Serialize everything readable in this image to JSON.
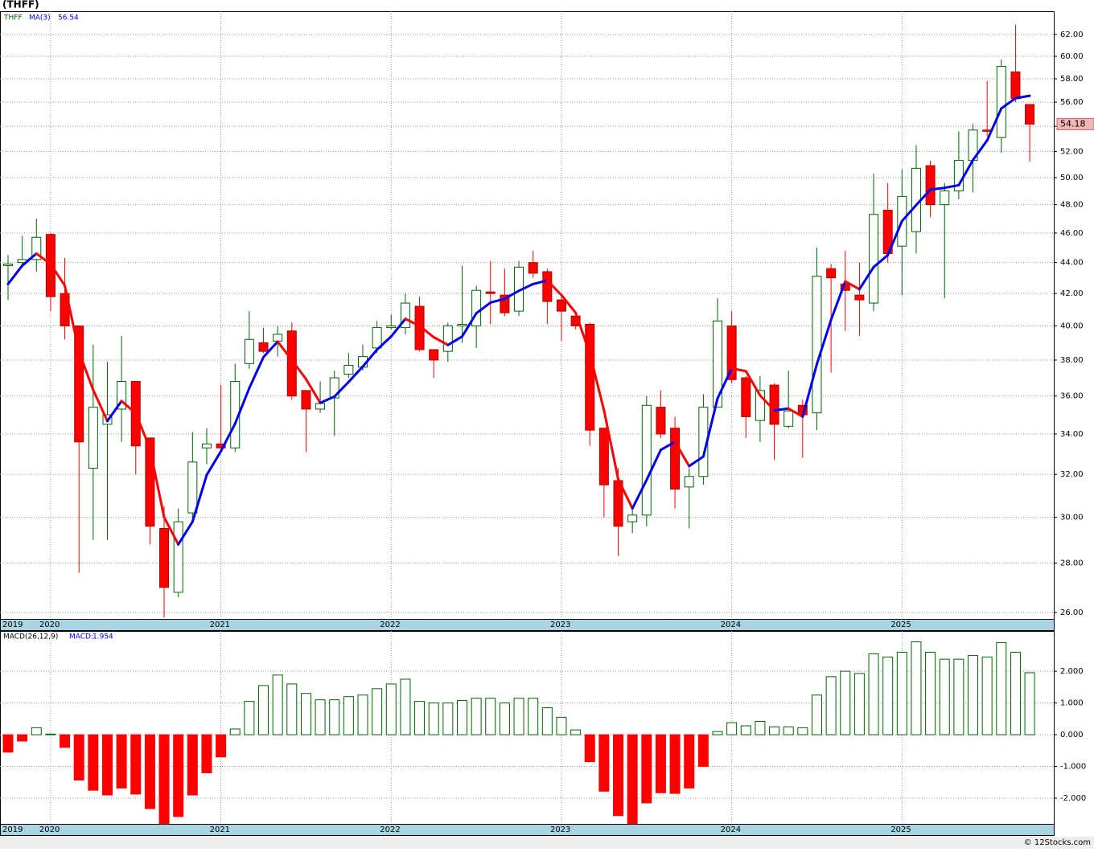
{
  "chart_data": [
    {
      "type": "candlestick",
      "title": "(THFF)",
      "symbol": "THFF",
      "categories": [
        "2019",
        null,
        null,
        "2020",
        null,
        null,
        null,
        null,
        null,
        null,
        null,
        null,
        null,
        null,
        null,
        "2021",
        null,
        null,
        null,
        null,
        null,
        null,
        null,
        null,
        null,
        null,
        null,
        "2022",
        null,
        null,
        null,
        null,
        null,
        null,
        null,
        null,
        null,
        null,
        null,
        "2023",
        null,
        null,
        null,
        null,
        null,
        null,
        null,
        null,
        null,
        null,
        null,
        "2024",
        null,
        null,
        null,
        null,
        null,
        null,
        null,
        null,
        null,
        null,
        null,
        "2025",
        null,
        null,
        null,
        null,
        null,
        null,
        null,
        null,
        null
      ],
      "open": [
        43.8,
        44.0,
        44.2,
        45.9,
        42.0,
        40.0,
        32.3,
        34.5,
        35.3,
        36.8,
        33.8,
        29.5,
        26.8,
        30.2,
        33.3,
        33.5,
        33.3,
        37.8,
        39.0,
        39.1,
        39.7,
        36.3,
        35.3,
        35.9,
        37.2,
        37.6,
        38.7,
        39.9,
        39.9,
        41.2,
        38.6,
        38.5,
        40.0,
        40.0,
        42.1,
        41.9,
        40.9,
        44.0,
        43.4,
        41.6,
        40.6,
        40.1,
        34.3,
        31.7,
        29.8,
        30.1,
        35.4,
        34.3,
        31.4,
        31.9,
        35.4,
        40.0,
        37.0,
        34.7,
        36.6,
        34.4,
        35.5,
        35.1,
        43.6,
        42.6,
        41.9,
        41.4,
        47.6,
        45.1,
        46.1,
        50.9,
        48.0,
        49.0,
        51.3,
        53.7,
        53.1,
        58.6,
        55.8
      ],
      "high": [
        44.5,
        45.8,
        47.0,
        46.0,
        44.3,
        40.0,
        38.9,
        37.9,
        39.4,
        36.8,
        33.8,
        30.5,
        30.4,
        34.1,
        34.3,
        36.6,
        37.8,
        40.9,
        39.9,
        40.0,
        40.2,
        36.3,
        36.8,
        37.4,
        38.4,
        38.9,
        40.3,
        40.7,
        42.0,
        41.8,
        38.6,
        40.2,
        43.8,
        42.5,
        44.1,
        43.6,
        44.1,
        44.8,
        43.6,
        42.0,
        40.7,
        40.2,
        34.3,
        32.3,
        30.4,
        36.0,
        36.3,
        34.9,
        32.3,
        36.1,
        41.7,
        40.9,
        37.1,
        37.1,
        36.7,
        37.4,
        35.8,
        45.0,
        43.9,
        44.8,
        44.0,
        50.3,
        49.6,
        50.6,
        52.5,
        51.3,
        49.6,
        53.6,
        54.2,
        57.8,
        59.7,
        62.9,
        55.8
      ],
      "low": [
        41.6,
        43.7,
        43.4,
        40.9,
        39.2,
        27.6,
        29.0,
        29.0,
        33.6,
        32.0,
        28.8,
        25.8,
        26.6,
        29.8,
        32.5,
        33.2,
        33.1,
        37.5,
        38.4,
        38.2,
        35.8,
        33.1,
        35.1,
        33.9,
        37.0,
        37.4,
        38.4,
        39.8,
        39.5,
        38.5,
        37.0,
        37.9,
        39.0,
        38.7,
        40.1,
        40.6,
        40.6,
        43.0,
        40.1,
        39.1,
        39.8,
        33.4,
        30.0,
        28.3,
        29.3,
        29.6,
        33.8,
        30.4,
        29.5,
        31.5,
        35.4,
        36.7,
        33.8,
        33.6,
        32.7,
        34.3,
        32.8,
        34.2,
        37.3,
        39.7,
        39.4,
        40.9,
        44.0,
        41.9,
        44.6,
        47.1,
        41.7,
        48.4,
        48.9,
        53.2,
        51.9,
        56.0,
        51.2
      ],
      "close": [
        43.9,
        44.2,
        45.7,
        41.8,
        40.0,
        33.6,
        35.4,
        35.0,
        36.8,
        33.4,
        29.6,
        27.0,
        29.8,
        32.6,
        33.5,
        33.3,
        36.8,
        39.2,
        38.5,
        39.5,
        36.0,
        35.3,
        35.6,
        37.0,
        37.7,
        38.2,
        39.9,
        40.0,
        41.4,
        38.6,
        38.0,
        40.0,
        40.1,
        42.2,
        42.0,
        40.8,
        43.7,
        43.3,
        41.5,
        40.9,
        40.0,
        34.2,
        31.5,
        29.6,
        30.1,
        35.5,
        34.0,
        31.3,
        31.9,
        35.4,
        40.3,
        36.9,
        34.9,
        36.3,
        34.5,
        35.2,
        35.0,
        43.1,
        43.0,
        42.2,
        41.6,
        47.3,
        44.6,
        48.6,
        50.7,
        48.0,
        49.0,
        51.3,
        53.7,
        53.6,
        59.1,
        56.3,
        54.18
      ],
      "up_color": "#006400",
      "down_color": "#ff0000",
      "ma": {
        "name": "MA(3)",
        "values": [
          42.6,
          43.8,
          44.6,
          43.9,
          42.5,
          38.47,
          36.33,
          34.67,
          35.73,
          35.07,
          33.27,
          30.0,
          28.8,
          29.8,
          31.97,
          33.13,
          34.53,
          36.43,
          38.17,
          39.07,
          38.0,
          36.93,
          35.63,
          35.97,
          36.77,
          37.63,
          38.6,
          39.37,
          40.43,
          40.0,
          39.33,
          38.87,
          39.37,
          40.77,
          41.43,
          41.67,
          42.17,
          42.6,
          42.83,
          41.9,
          40.8,
          38.37,
          35.23,
          31.77,
          30.4,
          31.73,
          33.2,
          33.6,
          32.4,
          32.87,
          35.87,
          37.53,
          37.37,
          36.03,
          35.23,
          35.33,
          34.9,
          37.77,
          40.37,
          42.77,
          42.27,
          43.7,
          44.5,
          46.83,
          47.97,
          49.1,
          49.23,
          49.43,
          51.33,
          52.87,
          55.47,
          56.33,
          56.54
        ],
        "rise_color": "#0000ee",
        "fall_color": "#ff0000"
      },
      "log_scale": true,
      "grid": true,
      "ylim": [
        25.75,
        64.2
      ],
      "yticks": [
        {
          "value": 26,
          "label": "26.00"
        },
        {
          "value": 28,
          "label": "28.00"
        },
        {
          "value": 30,
          "label": "30.00"
        },
        {
          "value": 32,
          "label": "32.00"
        },
        {
          "value": 34,
          "label": "34.00"
        },
        {
          "value": 36,
          "label": "36.00"
        },
        {
          "value": 38,
          "label": "38.00"
        },
        {
          "value": 40,
          "label": "40.00"
        },
        {
          "value": 42,
          "label": "42.00"
        },
        {
          "value": 44,
          "label": "44.00"
        },
        {
          "value": 46,
          "label": "46.00"
        },
        {
          "value": 48,
          "label": "48.00"
        },
        {
          "value": 50,
          "label": "50.00"
        },
        {
          "value": 52,
          "label": "52.00"
        },
        {
          "value": 54,
          "label": "54.00"
        },
        {
          "value": 56,
          "label": "56.00"
        },
        {
          "value": 58,
          "label": "58.00"
        },
        {
          "value": 60,
          "label": "60.00"
        },
        {
          "value": 62,
          "label": "62.00"
        }
      ]
    },
    {
      "type": "bar",
      "name": "MACD(26,12,9)",
      "value_prefix": "MACD:",
      "categories": [
        "2019",
        null,
        null,
        "2020",
        null,
        null,
        null,
        null,
        null,
        null,
        null,
        null,
        null,
        null,
        null,
        "2021",
        null,
        null,
        null,
        null,
        null,
        null,
        null,
        null,
        null,
        null,
        null,
        "2022",
        null,
        null,
        null,
        null,
        null,
        null,
        null,
        null,
        null,
        null,
        null,
        "2023",
        null,
        null,
        null,
        null,
        null,
        null,
        null,
        null,
        null,
        null,
        null,
        "2024",
        null,
        null,
        null,
        null,
        null,
        null,
        null,
        null,
        null,
        null,
        null,
        "2025",
        null,
        null,
        null,
        null,
        null,
        null,
        null,
        null,
        null
      ],
      "values": [
        -0.55,
        -0.2,
        0.22,
        0.02,
        -0.4,
        -1.43,
        -1.75,
        -1.9,
        -1.68,
        -1.87,
        -2.33,
        -2.8,
        -2.58,
        -1.9,
        -1.2,
        -0.7,
        0.18,
        1.05,
        1.55,
        1.88,
        1.6,
        1.3,
        1.1,
        1.1,
        1.2,
        1.25,
        1.45,
        1.6,
        1.75,
        1.05,
        1.0,
        1.0,
        1.08,
        1.15,
        1.15,
        1.0,
        1.15,
        1.15,
        0.85,
        0.55,
        0.15,
        -0.85,
        -1.78,
        -2.55,
        -2.8,
        -2.15,
        -1.83,
        -1.85,
        -1.68,
        -1.0,
        0.1,
        0.38,
        0.28,
        0.42,
        0.25,
        0.25,
        0.22,
        1.25,
        1.83,
        2.0,
        1.93,
        2.55,
        2.45,
        2.6,
        2.93,
        2.6,
        2.38,
        2.38,
        2.5,
        2.45,
        2.9,
        2.6,
        1.954
      ],
      "pos_color": "#006400",
      "neg_color": "#ff0000",
      "grid": true,
      "ylim": [
        -2.81,
        3.27
      ],
      "yticks": [
        {
          "value": -2,
          "label": "-2.000"
        },
        {
          "value": -1,
          "label": "-1.000"
        },
        {
          "value": 0,
          "label": "0.000"
        },
        {
          "value": 1,
          "label": "1.000"
        },
        {
          "value": 2,
          "label": "2.000"
        }
      ]
    }
  ],
  "footer": "© 12Stocks.com"
}
